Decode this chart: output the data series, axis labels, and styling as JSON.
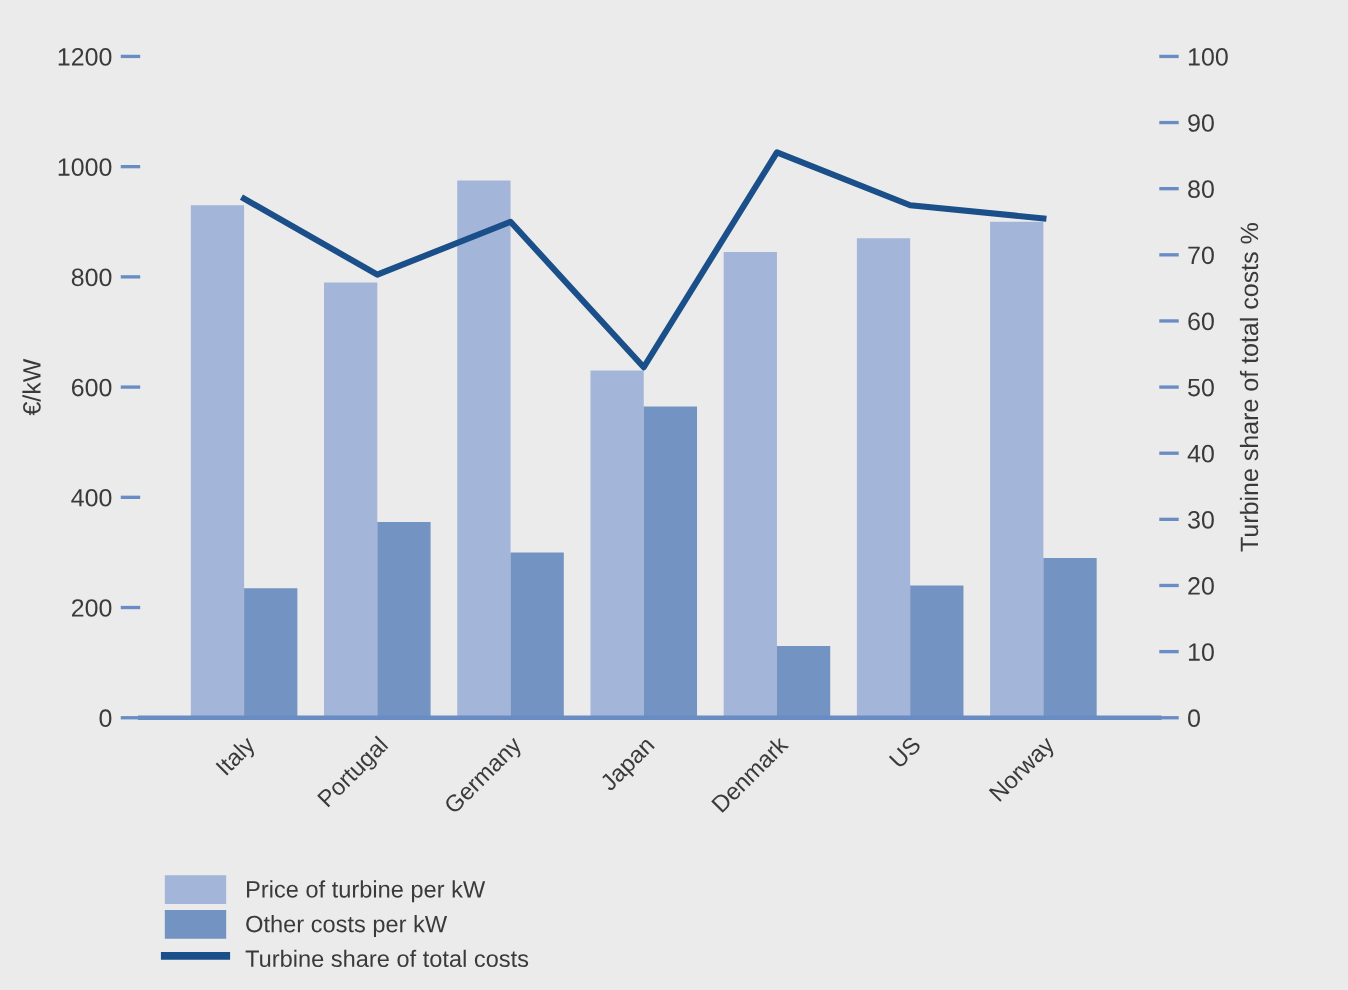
{
  "chart_data": {
    "type": "bar",
    "categories": [
      "Italy",
      "Portugal",
      "Germany",
      "Japan",
      "Denmark",
      "US",
      "Norway"
    ],
    "series": [
      {
        "name": "Price of turbine per kW",
        "color": "#a3b5d8",
        "values": [
          930,
          790,
          975,
          630,
          845,
          870,
          900
        ]
      },
      {
        "name": "Other costs per kW",
        "color": "#7393c2",
        "values": [
          235,
          355,
          300,
          565,
          130,
          240,
          290
        ]
      },
      {
        "name": "Turbine share of total costs",
        "type": "line",
        "axis": "y2",
        "color": "#1a4f8a",
        "values": [
          78.5,
          67,
          75,
          53,
          85.5,
          77.5,
          75.5
        ]
      }
    ],
    "ylabel": "€/kW",
    "y2label": "Turbine share of total costs %",
    "ylim": [
      0,
      1200
    ],
    "yticks": [
      0,
      200,
      400,
      600,
      800,
      1000,
      1200
    ],
    "y2lim": [
      0,
      100
    ],
    "y2ticks": [
      0,
      10,
      20,
      30,
      40,
      50,
      60,
      70,
      80,
      90,
      100
    ],
    "legend": "bottom left",
    "grid": false
  }
}
